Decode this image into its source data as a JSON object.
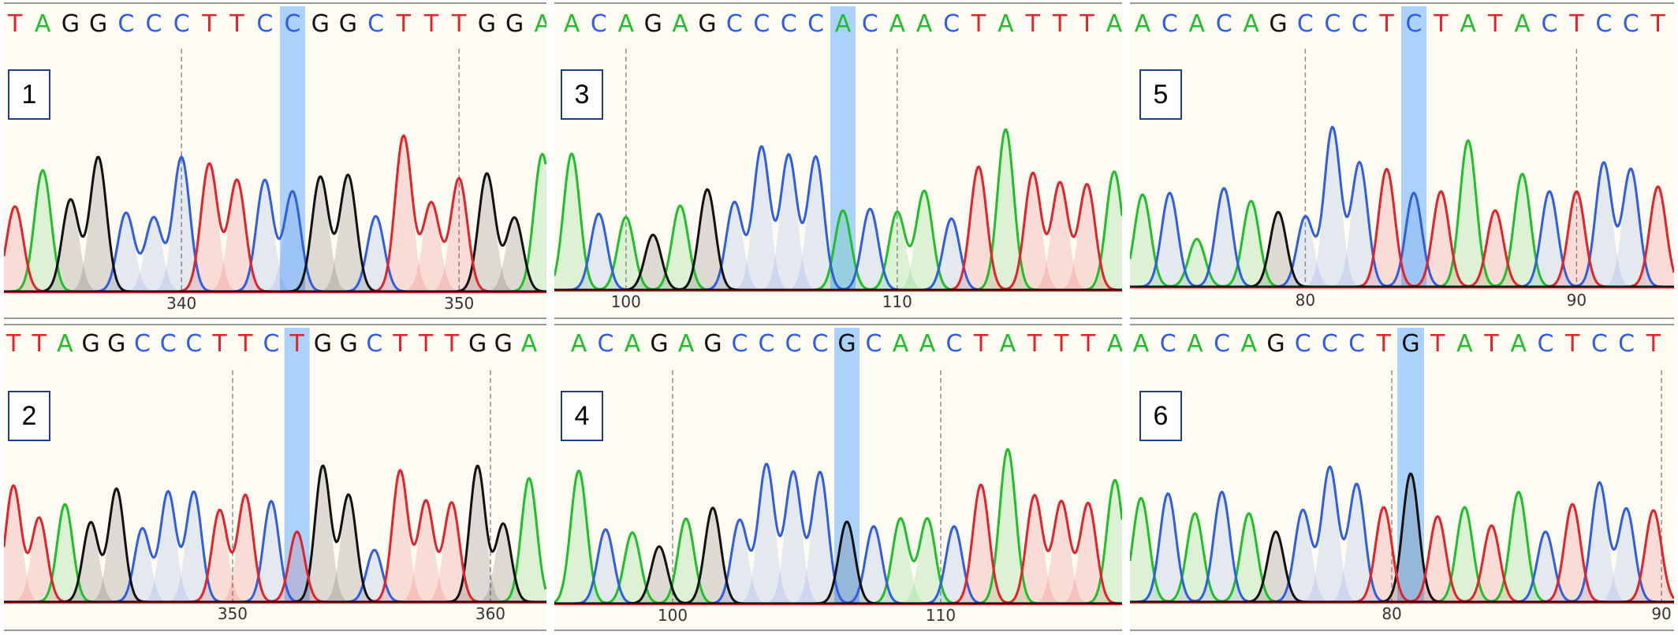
{
  "colors": {
    "A": "#1fbf2a",
    "C": "#2f5fe0",
    "G": "#111111",
    "T": "#e2232a",
    "highlight": "#a7d0fb",
    "background": "#fdfbf2",
    "tick": "#888888",
    "baseline_red": "#e2232a"
  },
  "panels": [
    {
      "id": "1",
      "label": "1",
      "sequence": [
        "T",
        "A",
        "G",
        "G",
        "C",
        "C",
        "C",
        "T",
        "T",
        "C",
        "C",
        "G",
        "G",
        "C",
        "T",
        "T",
        "T",
        "G",
        "G",
        "A"
      ],
      "highlight_index": 10,
      "peaks": [
        "T",
        "A",
        "G",
        "G",
        "C",
        "C",
        "C",
        "T",
        "T",
        "C",
        "C",
        "G",
        "G",
        "C",
        "T",
        "T",
        "T",
        "G",
        "G",
        "A"
      ],
      "peak_heights": [
        0.52,
        0.74,
        0.56,
        0.82,
        0.48,
        0.45,
        0.82,
        0.78,
        0.68,
        0.68,
        0.61,
        0.7,
        0.71,
        0.46,
        0.95,
        0.54,
        0.69,
        0.72,
        0.45,
        0.84
      ],
      "tick_labels": [
        {
          "text": "340",
          "index": 6.0
        },
        {
          "text": "350",
          "index": 16.0
        }
      ]
    },
    {
      "id": "2",
      "label": "2",
      "sequence": [
        "T",
        "T",
        "A",
        "G",
        "G",
        "C",
        "C",
        "C",
        "T",
        "T",
        "C",
        "T",
        "G",
        "G",
        "C",
        "T",
        "T",
        "T",
        "G",
        "G",
        "A"
      ],
      "highlight_index": 11,
      "peaks": [
        "T",
        "T",
        "A",
        "G",
        "G",
        "C",
        "C",
        "C",
        "T",
        "T",
        "C",
        "T",
        "G",
        "G",
        "C",
        "T",
        "T",
        "T",
        "G",
        "G",
        "A"
      ],
      "peak_heights": [
        0.76,
        0.55,
        0.64,
        0.52,
        0.74,
        0.48,
        0.72,
        0.72,
        0.6,
        0.7,
        0.66,
        0.46,
        0.89,
        0.7,
        0.34,
        0.86,
        0.66,
        0.65,
        0.89,
        0.51,
        0.81
      ],
      "tick_labels": [
        {
          "text": "350",
          "index": 8.5
        },
        {
          "text": "360",
          "index": 18.5
        }
      ]
    },
    {
      "id": "3",
      "label": "3",
      "sequence": [
        "A",
        "C",
        "A",
        "G",
        "A",
        "G",
        "C",
        "C",
        "C",
        "C",
        "A",
        "C",
        "A",
        "A",
        "C",
        "T",
        "A",
        "T",
        "T",
        "T",
        "A"
      ],
      "highlight_index": 10,
      "peaks": [
        "A",
        "C",
        "A",
        "G",
        "A",
        "G",
        "C",
        "C",
        "C",
        "C",
        "A",
        "C",
        "A",
        "A",
        "C",
        "T",
        "A",
        "T",
        "T",
        "T",
        "A"
      ],
      "peak_heights": [
        0.84,
        0.47,
        0.45,
        0.34,
        0.52,
        0.62,
        0.54,
        0.88,
        0.83,
        0.82,
        0.49,
        0.5,
        0.48,
        0.61,
        0.44,
        0.76,
        0.99,
        0.72,
        0.66,
        0.65,
        0.73
      ],
      "tick_labels": [
        {
          "text": "100",
          "index": 2.0
        },
        {
          "text": "110",
          "index": 12.0
        }
      ]
    },
    {
      "id": "4",
      "label": "4",
      "sequence": [
        "A",
        "C",
        "A",
        "G",
        "A",
        "G",
        "C",
        "C",
        "C",
        "C",
        "G",
        "C",
        "A",
        "A",
        "C",
        "T",
        "A",
        "T",
        "T",
        "T",
        "A"
      ],
      "highlight_index": 10,
      "peaks": [
        "A",
        "C",
        "A",
        "G",
        "A",
        "G",
        "C",
        "C",
        "C",
        "C",
        "G",
        "C",
        "A",
        "A",
        "C",
        "T",
        "A",
        "T",
        "T",
        "T",
        "A"
      ],
      "peak_heights": [
        0.86,
        0.48,
        0.46,
        0.37,
        0.55,
        0.62,
        0.54,
        0.9,
        0.85,
        0.85,
        0.53,
        0.5,
        0.55,
        0.55,
        0.5,
        0.77,
        1.0,
        0.7,
        0.66,
        0.65,
        0.8
      ],
      "tick_labels": [
        {
          "text": "100",
          "index": 3.5
        },
        {
          "text": "110",
          "index": 13.5
        }
      ]
    },
    {
      "id": "5",
      "label": "5",
      "sequence": [
        "A",
        "C",
        "A",
        "C",
        "A",
        "G",
        "C",
        "C",
        "C",
        "T",
        "C",
        "T",
        "A",
        "T",
        "A",
        "C",
        "T",
        "C",
        "C",
        "T"
      ],
      "highlight_index": 10,
      "peaks": [
        "A",
        "C",
        "A",
        "C",
        "A",
        "G",
        "C",
        "C",
        "C",
        "T",
        "C",
        "T",
        "A",
        "T",
        "A",
        "C",
        "T",
        "C",
        "C",
        "T"
      ],
      "peak_heights": [
        0.58,
        0.59,
        0.3,
        0.62,
        0.54,
        0.47,
        0.44,
        1.0,
        0.78,
        0.74,
        0.59,
        0.6,
        0.92,
        0.48,
        0.71,
        0.6,
        0.6,
        0.78,
        0.74,
        0.63
      ],
      "tick_labels": [
        {
          "text": "80",
          "index": 6.0
        },
        {
          "text": "90",
          "index": 16.0
        }
      ]
    },
    {
      "id": "6",
      "label": "6",
      "sequence": [
        "A",
        "C",
        "A",
        "C",
        "A",
        "G",
        "C",
        "C",
        "C",
        "T",
        "G",
        "T",
        "A",
        "T",
        "A",
        "C",
        "T",
        "C",
        "C",
        "T"
      ],
      "highlight_index": 10,
      "peaks": [
        "A",
        "C",
        "A",
        "C",
        "A",
        "G",
        "C",
        "C",
        "C",
        "T",
        "G",
        "T",
        "A",
        "T",
        "A",
        "C",
        "T",
        "C",
        "C",
        "T"
      ],
      "peak_heights": [
        0.68,
        0.71,
        0.58,
        0.72,
        0.58,
        0.46,
        0.6,
        0.88,
        0.77,
        0.62,
        0.84,
        0.56,
        0.62,
        0.5,
        0.72,
        0.46,
        0.64,
        0.78,
        0.61,
        0.6
      ],
      "tick_labels": [
        {
          "text": "80",
          "index": 9.3
        },
        {
          "text": "90",
          "index": 19.3
        }
      ]
    }
  ]
}
